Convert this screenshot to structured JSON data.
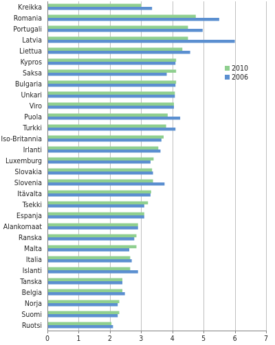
{
  "chart_data": {
    "type": "bar",
    "orientation": "horizontal",
    "categories": [
      "Kreikka",
      "Romania",
      "Portugali",
      "Latvia",
      "Liettua",
      "Kypros",
      "Saksa",
      "Bulgaria",
      "Unkari",
      "Viro",
      "Puola",
      "Turkki",
      "Iso-Britannia",
      "Irlanti",
      "Luxemburg",
      "Slovakia",
      "Slovenia",
      "Itävalta",
      "Tsekki",
      "Espanja",
      "Alankomaat",
      "Ranska",
      "Malta",
      "Italia",
      "Islanti",
      "Tanska",
      "Belgia",
      "Norja",
      "Suomi",
      "Ruotsi"
    ],
    "series": [
      {
        "name": "2010",
        "color": "#8fcf8f",
        "values": [
          3.0,
          4.75,
          4.5,
          4.5,
          4.32,
          4.12,
          4.12,
          4.12,
          4.08,
          4.05,
          3.85,
          3.8,
          3.72,
          3.55,
          3.4,
          3.35,
          3.38,
          3.32,
          3.22,
          3.1,
          2.9,
          2.85,
          2.85,
          2.65,
          2.65,
          2.4,
          2.4,
          2.3,
          2.3,
          2.05
        ]
      },
      {
        "name": "2006",
        "color": "#5b8fd0",
        "values": [
          3.35,
          5.5,
          4.97,
          6.0,
          4.57,
          4.1,
          3.82,
          4.1,
          4.08,
          4.05,
          4.25,
          4.1,
          3.65,
          3.62,
          3.3,
          3.38,
          3.75,
          3.3,
          3.1,
          3.1,
          2.9,
          2.78,
          2.62,
          2.7,
          2.9,
          2.4,
          2.48,
          2.25,
          2.25,
          2.1
        ]
      }
    ],
    "x_ticks": [
      "0",
      "1",
      "2",
      "3",
      "4",
      "5",
      "6",
      "7"
    ],
    "xlim": [
      0,
      7
    ],
    "grid": "vertical",
    "legend": {
      "placement": "right",
      "items": [
        "2010",
        "2006"
      ]
    }
  }
}
